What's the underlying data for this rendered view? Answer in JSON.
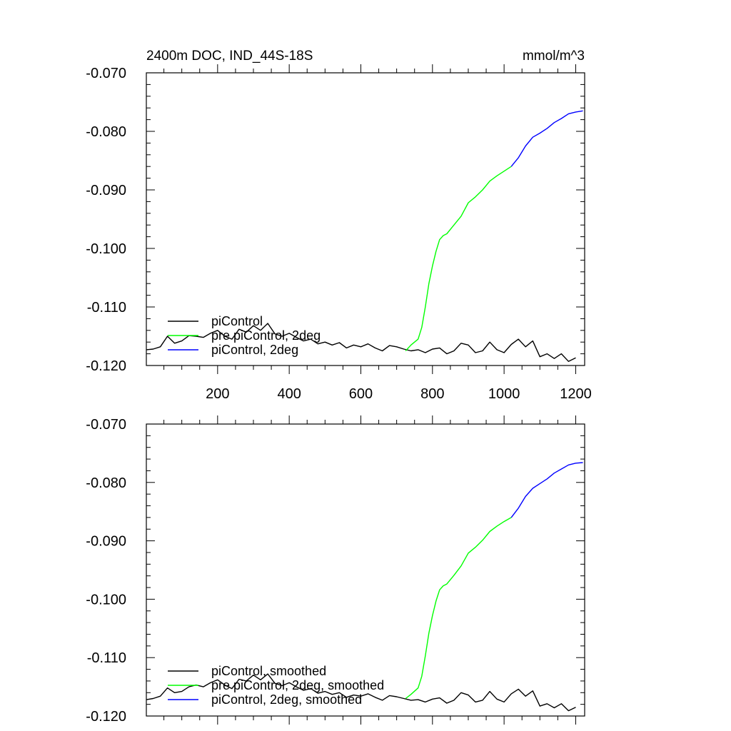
{
  "chart_data": [
    {
      "type": "line",
      "title": "2400m DOC, IND_44S-18S",
      "units": "mmol/m^3",
      "xlabel": "",
      "ylabel": "",
      "xlim": [
        1,
        1225
      ],
      "ylim": [
        -0.12,
        -0.07
      ],
      "xticks": [
        200,
        400,
        600,
        800,
        1000,
        1200
      ],
      "xtick_labels": [
        "200",
        "400",
        "600",
        "800",
        "1000",
        "1200"
      ],
      "yticks": [
        -0.12,
        -0.11,
        -0.1,
        -0.09,
        -0.08,
        -0.07
      ],
      "ytick_labels": [
        "-0.120",
        "-0.110",
        "-0.100",
        "-0.090",
        "-0.080",
        "-0.070"
      ],
      "grid": false,
      "legend_position": "bottom-left",
      "series": [
        {
          "name": "piControl",
          "color": "#000000",
          "x": [
            1,
            20,
            40,
            60,
            80,
            100,
            120,
            140,
            160,
            180,
            200,
            220,
            240,
            260,
            280,
            300,
            320,
            340,
            360,
            380,
            400,
            420,
            440,
            460,
            480,
            500,
            520,
            540,
            560,
            580,
            600,
            620,
            640,
            660,
            680,
            700,
            720,
            740,
            760,
            780,
            800,
            820,
            840,
            860,
            880,
            900,
            920,
            940,
            960,
            980,
            1000,
            1020,
            1040,
            1060,
            1080,
            1100,
            1120,
            1140,
            1160,
            1180,
            1200
          ],
          "y": [
            -0.1173,
            -0.1172,
            -0.1168,
            -0.115,
            -0.1162,
            -0.1158,
            -0.1149,
            -0.115,
            -0.1152,
            -0.1145,
            -0.114,
            -0.115,
            -0.1155,
            -0.1138,
            -0.1143,
            -0.1132,
            -0.114,
            -0.1128,
            -0.1146,
            -0.115,
            -0.1145,
            -0.1152,
            -0.1158,
            -0.1155,
            -0.1163,
            -0.116,
            -0.1165,
            -0.1161,
            -0.117,
            -0.1165,
            -0.1168,
            -0.1163,
            -0.117,
            -0.1175,
            -0.1166,
            -0.1168,
            -0.1172,
            -0.1175,
            -0.1173,
            -0.1178,
            -0.1172,
            -0.117,
            -0.118,
            -0.1175,
            -0.1162,
            -0.1165,
            -0.1178,
            -0.1175,
            -0.116,
            -0.1173,
            -0.1178,
            -0.1164,
            -0.1155,
            -0.1168,
            -0.1158,
            -0.1185,
            -0.118,
            -0.1188,
            -0.118,
            -0.1193,
            -0.1187
          ]
        },
        {
          "name": "pre piControl, 2deg",
          "color": "#00ff00",
          "x": [
            725,
            740,
            760,
            770,
            780,
            790,
            800,
            810,
            820,
            830,
            840,
            860,
            880,
            900,
            920,
            940,
            960,
            980,
            1000,
            1020
          ],
          "y": [
            -0.1175,
            -0.1165,
            -0.1155,
            -0.1135,
            -0.11,
            -0.106,
            -0.103,
            -0.1005,
            -0.0985,
            -0.0978,
            -0.0975,
            -0.096,
            -0.0945,
            -0.0922,
            -0.0912,
            -0.09,
            -0.0885,
            -0.0876,
            -0.0868,
            -0.086
          ]
        },
        {
          "name": "piControl, 2deg",
          "color": "#0000ff",
          "x": [
            1020,
            1040,
            1060,
            1080,
            1100,
            1120,
            1140,
            1160,
            1180,
            1200,
            1220
          ],
          "y": [
            -0.086,
            -0.0845,
            -0.0825,
            -0.081,
            -0.0803,
            -0.0795,
            -0.0785,
            -0.0778,
            -0.077,
            -0.0767,
            -0.0765
          ]
        }
      ]
    },
    {
      "type": "line",
      "title": "",
      "xlabel": "",
      "ylabel": "",
      "xlim": [
        1,
        1225
      ],
      "ylim": [
        -0.12,
        -0.07
      ],
      "xticks": [
        200,
        400,
        600,
        800,
        1000,
        1200
      ],
      "xtick_labels": [],
      "yticks": [
        -0.12,
        -0.11,
        -0.1,
        -0.09,
        -0.08,
        -0.07
      ],
      "ytick_labels": [
        "-0.120",
        "-0.110",
        "-0.100",
        "-0.090",
        "-0.080",
        "-0.070"
      ],
      "grid": false,
      "legend_position": "bottom-left",
      "series": [
        {
          "name": "piControl, smoothed",
          "color": "#000000",
          "x": [
            1,
            20,
            40,
            60,
            80,
            100,
            120,
            140,
            160,
            180,
            200,
            220,
            240,
            260,
            280,
            300,
            320,
            340,
            360,
            380,
            400,
            420,
            440,
            460,
            480,
            500,
            520,
            540,
            560,
            580,
            600,
            620,
            640,
            660,
            680,
            700,
            720,
            740,
            760,
            780,
            800,
            820,
            840,
            860,
            880,
            900,
            920,
            940,
            960,
            980,
            1000,
            1020,
            1040,
            1060,
            1080,
            1100,
            1120,
            1140,
            1160,
            1180,
            1200
          ],
          "y": [
            -0.1172,
            -0.117,
            -0.1166,
            -0.1152,
            -0.116,
            -0.1158,
            -0.115,
            -0.1147,
            -0.115,
            -0.1143,
            -0.1138,
            -0.1147,
            -0.1153,
            -0.1137,
            -0.114,
            -0.113,
            -0.1138,
            -0.1128,
            -0.1144,
            -0.1148,
            -0.1143,
            -0.115,
            -0.1156,
            -0.1153,
            -0.1161,
            -0.1158,
            -0.1163,
            -0.116,
            -0.1168,
            -0.1164,
            -0.1166,
            -0.1162,
            -0.1168,
            -0.1173,
            -0.1165,
            -0.1167,
            -0.117,
            -0.1173,
            -0.1172,
            -0.1176,
            -0.1171,
            -0.1169,
            -0.1178,
            -0.1173,
            -0.116,
            -0.1164,
            -0.1176,
            -0.1173,
            -0.1158,
            -0.1171,
            -0.1176,
            -0.1162,
            -0.1154,
            -0.1166,
            -0.1157,
            -0.1183,
            -0.1179,
            -0.1186,
            -0.1179,
            -0.1191,
            -0.1185
          ]
        },
        {
          "name": "pre piControl, 2deg, smoothed",
          "color": "#00ff00",
          "x": [
            725,
            740,
            760,
            770,
            780,
            790,
            800,
            810,
            820,
            830,
            840,
            860,
            880,
            900,
            920,
            940,
            960,
            980,
            1000,
            1020
          ],
          "y": [
            -0.117,
            -0.1163,
            -0.1152,
            -0.1132,
            -0.1097,
            -0.1058,
            -0.1028,
            -0.1003,
            -0.0984,
            -0.0977,
            -0.0974,
            -0.0959,
            -0.0943,
            -0.0921,
            -0.0911,
            -0.0899,
            -0.0884,
            -0.0875,
            -0.0867,
            -0.086
          ]
        },
        {
          "name": "piControl, 2deg, smoothed",
          "color": "#0000ff",
          "x": [
            1020,
            1040,
            1060,
            1080,
            1100,
            1120,
            1140,
            1160,
            1180,
            1200,
            1220
          ],
          "y": [
            -0.086,
            -0.0844,
            -0.0824,
            -0.081,
            -0.0802,
            -0.0794,
            -0.0784,
            -0.0777,
            -0.077,
            -0.0767,
            -0.0766
          ]
        }
      ]
    }
  ]
}
